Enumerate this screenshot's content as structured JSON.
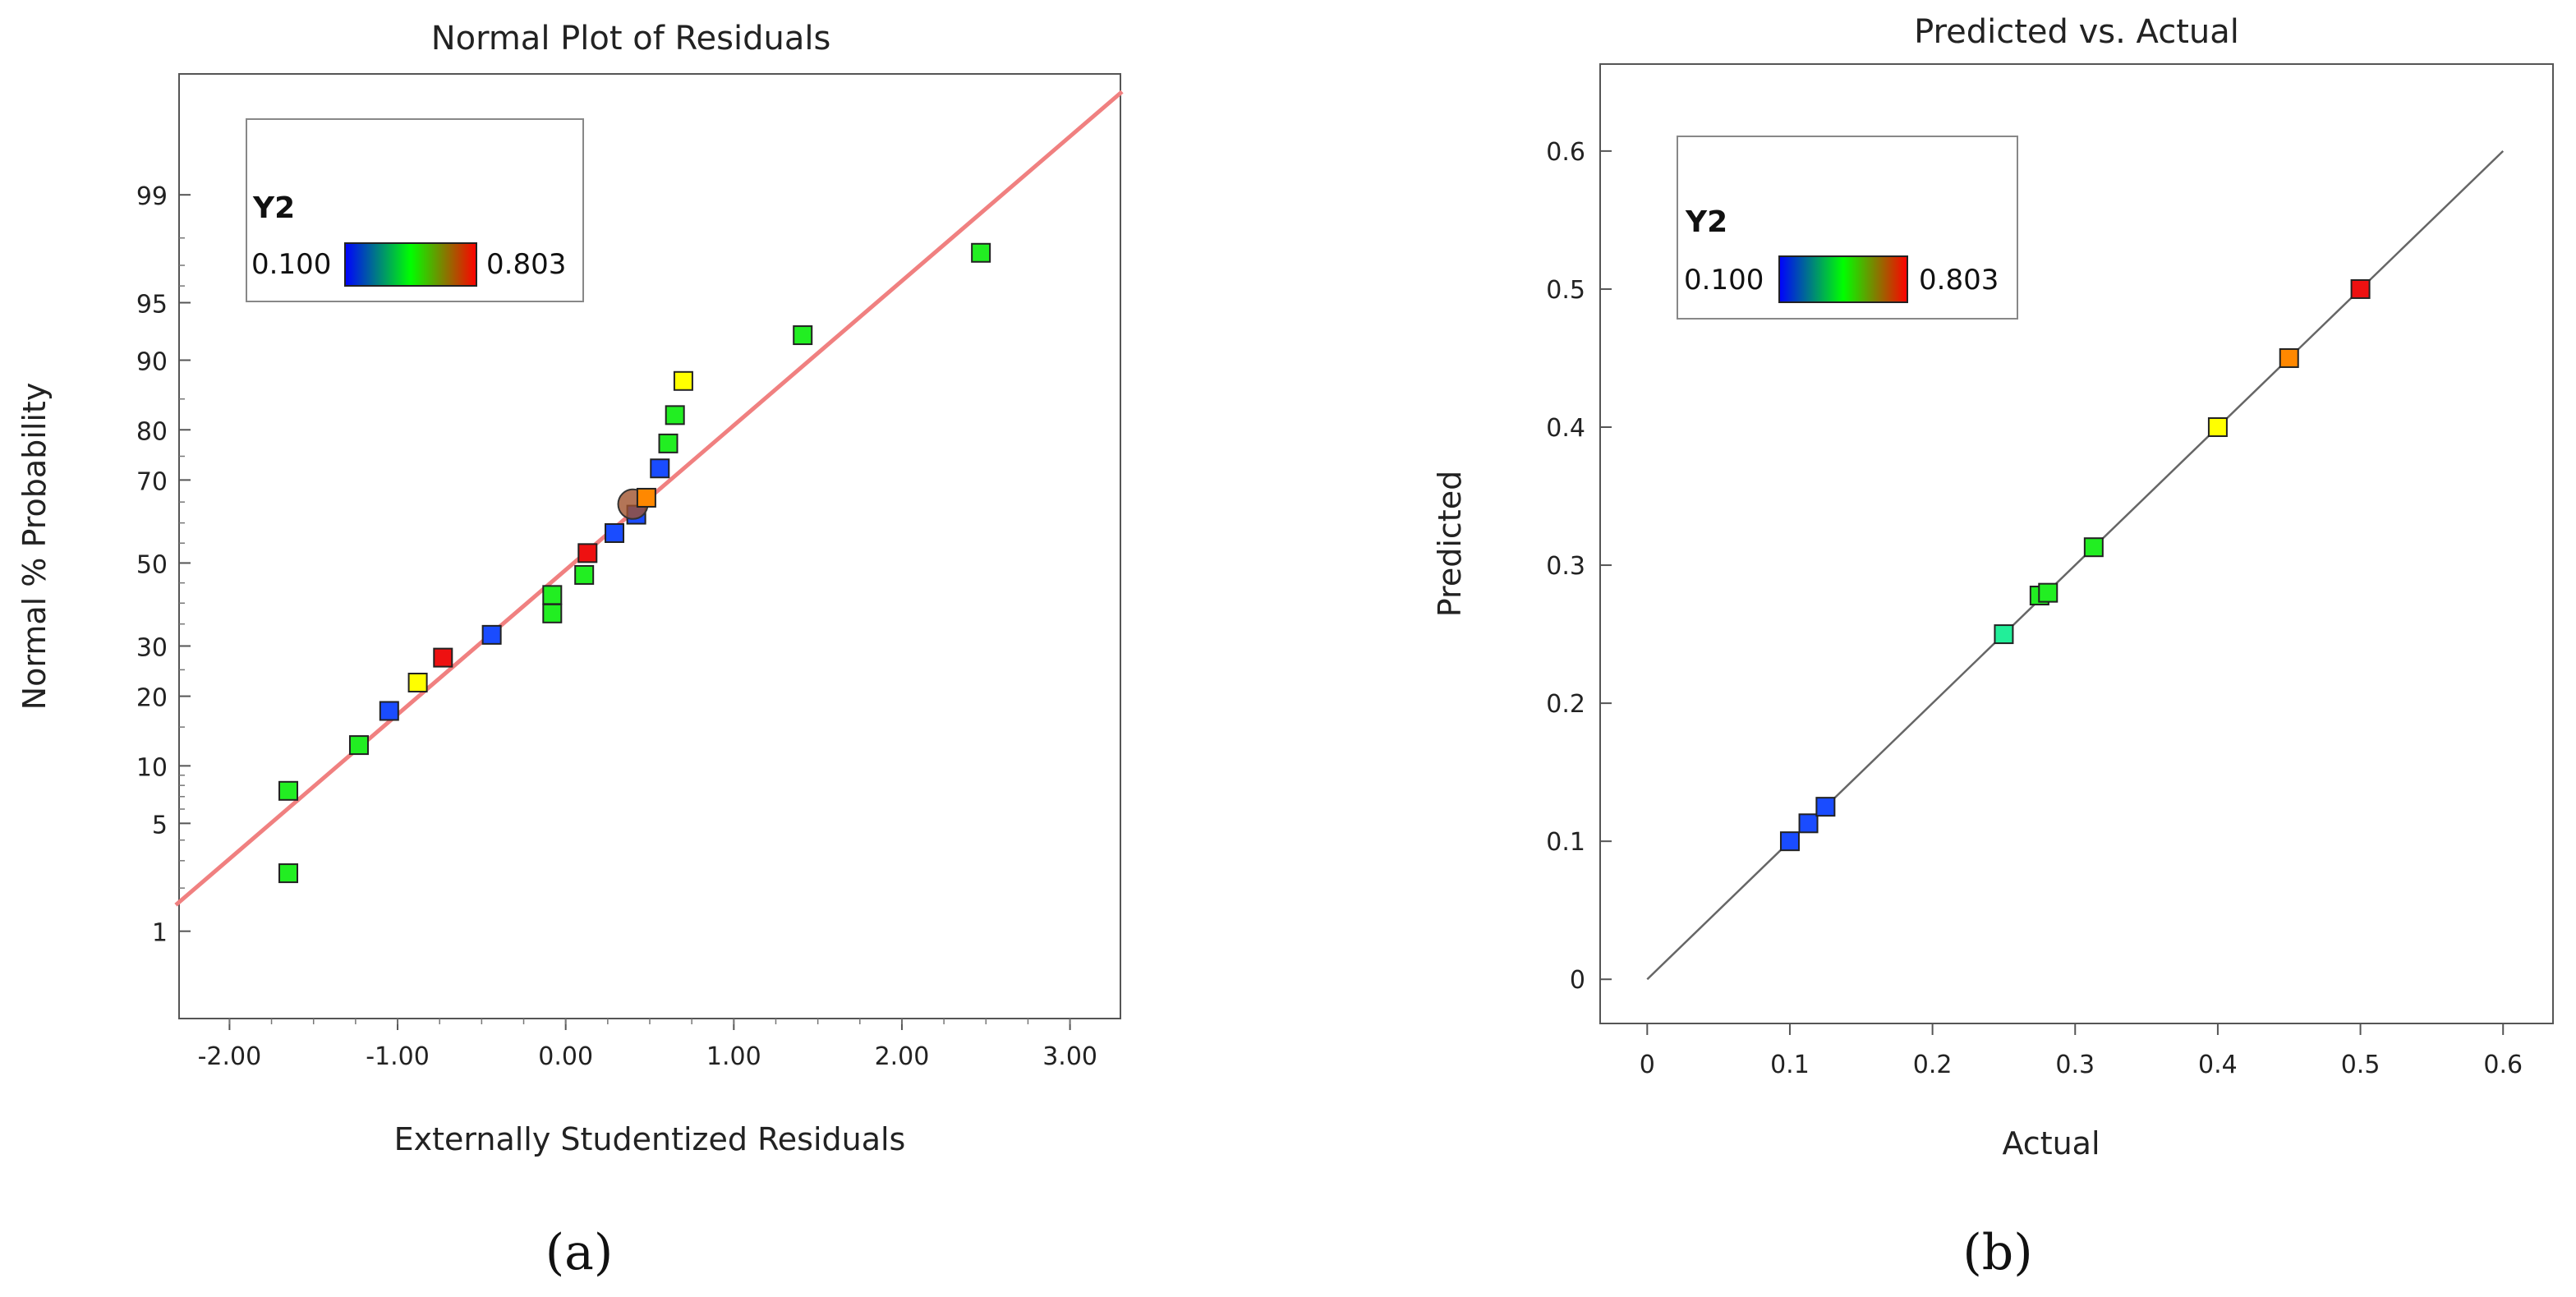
{
  "chart_data": [
    {
      "type": "scatter",
      "panel_label": "(a)",
      "title": "Normal Plot of Residuals",
      "xlabel": "Externally Studentized Residuals",
      "ylabel": "Normal % Probability",
      "xlim": [
        -2.3,
        3.3
      ],
      "x_ticks": [
        -2.0,
        -1.0,
        0.0,
        1.0,
        2.0,
        3.0
      ],
      "x_tick_labels": [
        "-2.00",
        "-1.00",
        "0.00",
        "1.00",
        "2.00",
        "3.00"
      ],
      "y_scale": "normal-probability",
      "ylim": [
        0.2,
        99.9
      ],
      "y_ticks": [
        1,
        5,
        10,
        20,
        30,
        50,
        70,
        80,
        90,
        95,
        99
      ],
      "y_tick_labels": [
        "1",
        "5",
        "10",
        "20",
        "30",
        "50",
        "70",
        "80",
        "90",
        "95",
        "99"
      ],
      "legend": {
        "title": "Y2",
        "min_label": "0.100",
        "max_label": "0.803",
        "position": "top-left"
      },
      "colorbar": [
        "#0000ff",
        "#00ff00",
        "#ff0000"
      ],
      "reference_line": {
        "color": "#f08080",
        "from": {
          "x": -2.3,
          "p": 1.66
        },
        "to": {
          "x": 3.3,
          "p": 99.85
        }
      },
      "points": [
        {
          "x": -1.65,
          "p": 2.5,
          "color": "#22ee22",
          "marker": "square"
        },
        {
          "x": -1.65,
          "p": 7.5,
          "color": "#22ee22",
          "marker": "square"
        },
        {
          "x": -1.23,
          "p": 12.5,
          "color": "#22ee22",
          "marker": "square"
        },
        {
          "x": -1.05,
          "p": 17.5,
          "color": "#1a4cff",
          "marker": "square"
        },
        {
          "x": -0.88,
          "p": 22.5,
          "color": "#ffff00",
          "marker": "square"
        },
        {
          "x": -0.73,
          "p": 27.5,
          "color": "#ee1111",
          "marker": "square"
        },
        {
          "x": -0.44,
          "p": 32.5,
          "color": "#1a4cff",
          "marker": "square"
        },
        {
          "x": -0.08,
          "p": 37.5,
          "color": "#22ee22",
          "marker": "square"
        },
        {
          "x": -0.08,
          "p": 42.0,
          "color": "#22ee22",
          "marker": "square"
        },
        {
          "x": 0.11,
          "p": 47.0,
          "color": "#22ee22",
          "marker": "square"
        },
        {
          "x": 0.13,
          "p": 52.5,
          "color": "#ee1111",
          "marker": "square"
        },
        {
          "x": 0.29,
          "p": 57.5,
          "color": "#1a4cff",
          "marker": "square"
        },
        {
          "x": 0.42,
          "p": 62.0,
          "color": "#1a4cff",
          "marker": "square"
        },
        {
          "x": 0.4,
          "p": 64.5,
          "color": "#a0522d",
          "marker": "circle"
        },
        {
          "x": 0.48,
          "p": 66.0,
          "color": "#ff8800",
          "marker": "square"
        },
        {
          "x": 0.56,
          "p": 72.5,
          "color": "#1a4cff",
          "marker": "square"
        },
        {
          "x": 0.61,
          "p": 77.5,
          "color": "#22ee22",
          "marker": "square"
        },
        {
          "x": 0.65,
          "p": 82.5,
          "color": "#22ee22",
          "marker": "square"
        },
        {
          "x": 0.7,
          "p": 87.5,
          "color": "#ffff00",
          "marker": "square"
        },
        {
          "x": 1.41,
          "p": 92.5,
          "color": "#22ee22",
          "marker": "square"
        },
        {
          "x": 2.47,
          "p": 97.5,
          "color": "#22ee22",
          "marker": "square"
        }
      ]
    },
    {
      "type": "scatter",
      "panel_label": "(b)",
      "title": "Predicted vs. Actual",
      "xlabel": "Actual",
      "ylabel": "Predicted",
      "xlim": [
        -0.033,
        0.635
      ],
      "ylim": [
        -0.032,
        0.663
      ],
      "x_ticks": [
        0,
        0.1,
        0.2,
        0.3,
        0.4,
        0.5,
        0.6
      ],
      "x_tick_labels": [
        "0",
        "0.1",
        "0.2",
        "0.3",
        "0.4",
        "0.5",
        "0.6"
      ],
      "y_ticks": [
        0,
        0.1,
        0.2,
        0.3,
        0.4,
        0.5,
        0.6
      ],
      "y_tick_labels": [
        "0",
        "0.1",
        "0.2",
        "0.3",
        "0.4",
        "0.5",
        "0.6"
      ],
      "legend": {
        "title": "Y2",
        "min_label": "0.100",
        "max_label": "0.803",
        "position": "top-left"
      },
      "colorbar": [
        "#0000ff",
        "#00ff00",
        "#ff0000"
      ],
      "reference_line": {
        "color": "#666666",
        "from": {
          "x": 0,
          "y": 0
        },
        "to": {
          "x": 0.6,
          "y": 0.6
        }
      },
      "points": [
        {
          "x": 0.1,
          "y": 0.1,
          "color": "#1a4cff"
        },
        {
          "x": 0.113,
          "y": 0.113,
          "color": "#1a4cff"
        },
        {
          "x": 0.125,
          "y": 0.125,
          "color": "#1a4cff"
        },
        {
          "x": 0.25,
          "y": 0.25,
          "color": "#22ee99"
        },
        {
          "x": 0.275,
          "y": 0.278,
          "color": "#22ee22"
        },
        {
          "x": 0.281,
          "y": 0.28,
          "color": "#22ee22"
        },
        {
          "x": 0.313,
          "y": 0.313,
          "color": "#22ee22"
        },
        {
          "x": 0.4,
          "y": 0.4,
          "color": "#ffff00"
        },
        {
          "x": 0.45,
          "y": 0.45,
          "color": "#ff8800"
        },
        {
          "x": 0.5,
          "y": 0.5,
          "color": "#ee1111"
        }
      ]
    }
  ]
}
